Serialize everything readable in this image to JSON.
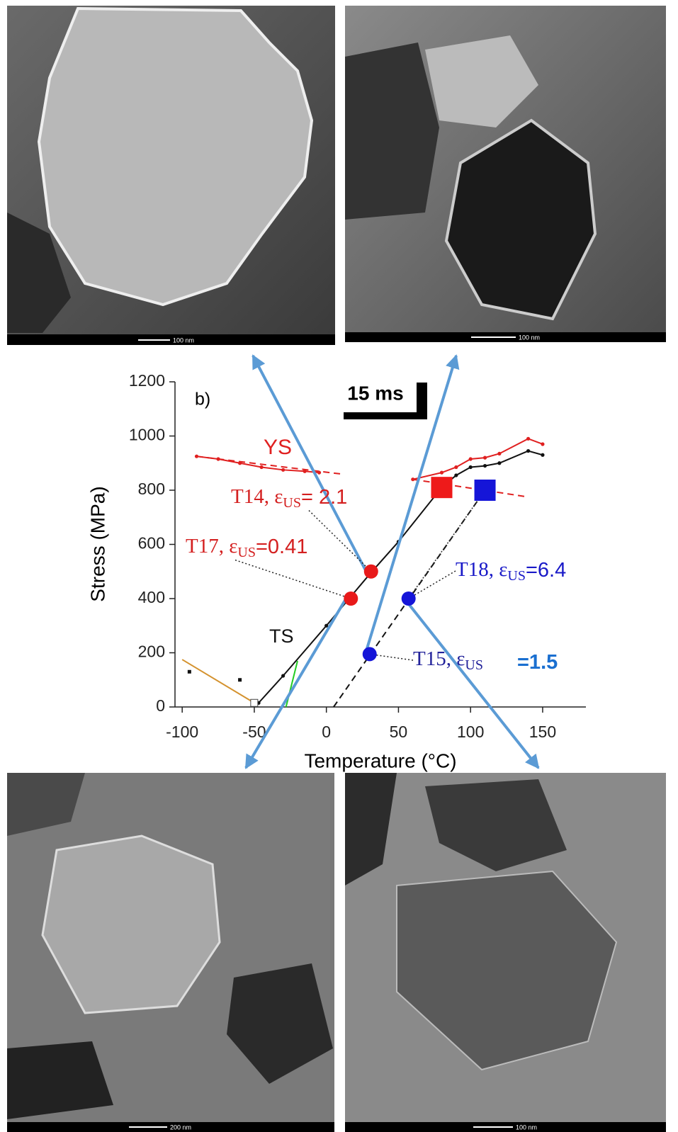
{
  "chart_data": {
    "type": "line",
    "panel_label": "b)",
    "inset": "15 ms",
    "xlabel": "Temperature (°C)",
    "ylabel": "Stress (MPa)",
    "xlim": [
      -105,
      180
    ],
    "ylim": [
      0,
      1200
    ],
    "xticks": [
      -100,
      -50,
      0,
      50,
      100,
      150
    ],
    "yticks": [
      0,
      200,
      400,
      600,
      800,
      1000,
      1200
    ],
    "series": [
      {
        "name": "YS",
        "color": "#e02020",
        "markers": true,
        "x": [
          -90,
          -75,
          -60,
          -45,
          -30,
          -15,
          -5
        ],
        "values": [
          925,
          915,
          900,
          885,
          875,
          870,
          865
        ]
      },
      {
        "color": "#e02020",
        "markers": true,
        "x": [
          60,
          80,
          90,
          100,
          110,
          120,
          140,
          150
        ],
        "values": [
          840,
          865,
          885,
          915,
          920,
          935,
          990,
          970
        ]
      },
      {
        "color": "#e02020",
        "dash": "dashed",
        "x": [
          -90,
          10
        ],
        "values": [
          925,
          860
        ]
      },
      {
        "color": "#e02020",
        "dash": "dashed",
        "x": [
          60,
          140
        ],
        "values": [
          840,
          775
        ]
      },
      {
        "name": "TS",
        "color": "#111111",
        "markers": true,
        "x": [
          -47,
          -30,
          0,
          30,
          50,
          80,
          90,
          100,
          110,
          120,
          140,
          150
        ],
        "values": [
          15,
          115,
          300,
          490,
          610,
          810,
          855,
          885,
          890,
          900,
          945,
          930
        ]
      },
      {
        "color": "#d4922e",
        "x": [
          -100,
          -50
        ],
        "values": [
          175,
          15
        ]
      },
      {
        "color": "#22cc22",
        "x": [
          -28,
          -20
        ],
        "values": [
          0,
          170
        ]
      },
      {
        "color": "#111111",
        "dash": "dashed",
        "x": [
          5,
          110
        ],
        "values": [
          0,
          800
        ]
      },
      {
        "color": "#333333",
        "dash": "dotted",
        "x": [
          57,
          110
        ],
        "values": [
          400,
          800
        ]
      }
    ],
    "isolated": {
      "color": "#111111",
      "x": [
        -95,
        -60
      ],
      "values": [
        130,
        100
      ]
    },
    "points": [
      {
        "label": "T14, ε",
        "sub": "US",
        "tail": "=  2.1",
        "color": "#e8191a",
        "label_color": "#d42020",
        "x": 31,
        "y": 500
      },
      {
        "label": "T17, ε",
        "sub": "US",
        "tail": "=0.41",
        "color": "#e8191a",
        "label_color": "#d42020",
        "x": 17,
        "y": 400
      },
      {
        "label": "T18, ε",
        "sub": "US",
        "tail": "=6.4",
        "color": "#1515d8",
        "label_color": "#1a1ac8",
        "x": 57,
        "y": 400
      },
      {
        "label": "T15, ε",
        "sub": "US",
        "tail": "=1.5",
        "color": "#1515d8",
        "label_color": "#22229a",
        "tail_color": "#1a6fd0",
        "x": 30,
        "y": 195
      }
    ],
    "squares": [
      {
        "color": "#ee1a1a",
        "x": 80,
        "y": 810
      },
      {
        "color": "#1515d8",
        "x": 110,
        "y": 800
      }
    ]
  },
  "images": [
    {
      "scale": "100 nm"
    },
    {
      "scale": "100 nm"
    },
    {
      "scale": "200 nm"
    },
    {
      "scale": "100 nm"
    }
  ]
}
